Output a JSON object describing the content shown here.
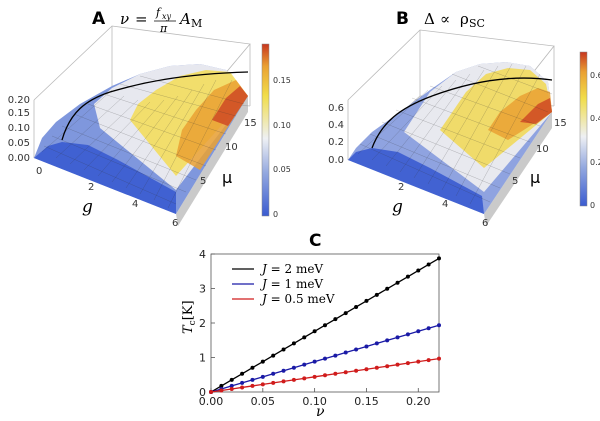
{
  "chart_data": [
    {
      "id": "A",
      "type": "surface3d",
      "title_letter": "A",
      "title_lhs": "ν",
      "title_rhs_num": "f",
      "title_rhs_num_sub": "xy",
      "title_rhs_den": "π",
      "title_rhs_tail": "A",
      "title_rhs_tail_sub": "M",
      "xlabel": "g",
      "ylabel": "μ",
      "x_ticks": [
        "0",
        "2",
        "4",
        "6"
      ],
      "y_ticks": [
        "5",
        "10",
        "15"
      ],
      "z_ticks": [
        "0.00",
        "0.05",
        "0.10",
        "0.15",
        "0.20"
      ],
      "colorbar_ticks": [
        "0",
        "0.05",
        "0.10",
        "0.15"
      ],
      "zlim": [
        0,
        0.2
      ],
      "xlim": [
        0,
        6
      ],
      "ylim": [
        0,
        18
      ],
      "colorbar_range": [
        0,
        0.19
      ]
    },
    {
      "id": "B",
      "type": "surface3d",
      "title_letter": "B",
      "title_lhs": "Δ",
      "title_mid": "∝",
      "title_rhs": "ρ",
      "title_rhs_sub": "SC",
      "xlabel": "g",
      "ylabel": "μ",
      "x_ticks": [
        "2",
        "4",
        "6"
      ],
      "y_ticks": [
        "5",
        "10",
        "15"
      ],
      "z_ticks": [
        "0.0",
        "0.2",
        "0.4",
        "0.6"
      ],
      "colorbar_ticks": [
        "0",
        "0.2",
        "0.4",
        "0.6"
      ],
      "zlim": [
        0,
        0.7
      ],
      "xlim": [
        0,
        6
      ],
      "ylim": [
        0,
        18
      ],
      "colorbar_range": [
        0,
        0.7
      ]
    },
    {
      "id": "C",
      "type": "line",
      "title_letter": "C",
      "xlabel": "ν",
      "ylabel_main": "T",
      "ylabel_sub": "c",
      "ylabel_unit": "[K]",
      "xlim": [
        0,
        0.22
      ],
      "ylim": [
        0,
        4
      ],
      "x_ticks": [
        0.0,
        0.05,
        0.1,
        0.15,
        0.2
      ],
      "x_tick_labels": [
        "0.00",
        "0.05",
        "0.10",
        "0.15",
        "0.20"
      ],
      "y_ticks": [
        0,
        1,
        2,
        3,
        4
      ],
      "y_tick_labels": [
        "0",
        "1",
        "2",
        "3",
        "4"
      ],
      "series": [
        {
          "name": "J = 2 meV",
          "legend_italic": "J",
          "legend_rest": " = 2 meV",
          "color": "#000000",
          "slope": 17.6,
          "x": [
            0,
            0.01,
            0.02,
            0.03,
            0.04,
            0.05,
            0.06,
            0.07,
            0.08,
            0.09,
            0.1,
            0.11,
            0.12,
            0.13,
            0.14,
            0.15,
            0.16,
            0.17,
            0.18,
            0.19,
            0.2,
            0.21,
            0.22
          ]
        },
        {
          "name": "J = 1 meV",
          "legend_italic": "J",
          "legend_rest": " = 1 meV",
          "color": "#1a1aa6",
          "slope": 8.8,
          "x": [
            0,
            0.01,
            0.02,
            0.03,
            0.04,
            0.05,
            0.06,
            0.07,
            0.08,
            0.09,
            0.1,
            0.11,
            0.12,
            0.13,
            0.14,
            0.15,
            0.16,
            0.17,
            0.18,
            0.19,
            0.2,
            0.21,
            0.22
          ]
        },
        {
          "name": "J = 0.5 meV",
          "legend_italic": "J",
          "legend_rest": " = 0.5 meV",
          "color": "#d01c1c",
          "slope": 4.4,
          "x": [
            0,
            0.01,
            0.02,
            0.03,
            0.04,
            0.05,
            0.06,
            0.07,
            0.08,
            0.09,
            0.1,
            0.11,
            0.12,
            0.13,
            0.14,
            0.15,
            0.16,
            0.17,
            0.18,
            0.19,
            0.2,
            0.21,
            0.22
          ]
        }
      ]
    }
  ]
}
